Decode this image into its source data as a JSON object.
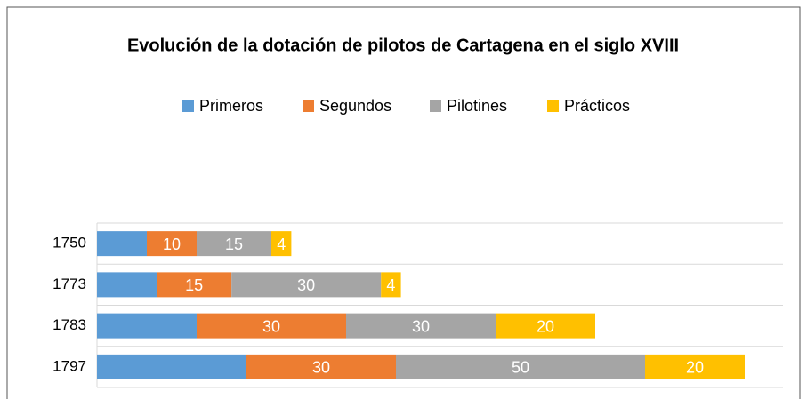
{
  "chart_data": {
    "type": "stacked_barh",
    "title": "Evolución de la dotación de pilotos de Cartagena en el siglo XVIII",
    "categories": [
      "1750",
      "1773",
      "1783",
      "1797"
    ],
    "series": [
      {
        "name": "Primeros",
        "color": "#5b9bd5",
        "values": [
          10,
          12,
          20,
          30
        ],
        "data_labels": false
      },
      {
        "name": "Segundos",
        "color": "#ed7d31",
        "values": [
          10,
          15,
          30,
          30
        ],
        "data_labels": true
      },
      {
        "name": "Pilotines",
        "color": "#a5a5a5",
        "values": [
          15,
          30,
          30,
          50
        ],
        "data_labels": true
      },
      {
        "name": "Prácticos",
        "color": "#ffc000",
        "values": [
          4,
          4,
          20,
          20
        ],
        "data_labels": true
      }
    ],
    "legend": "top",
    "grid": true
  }
}
